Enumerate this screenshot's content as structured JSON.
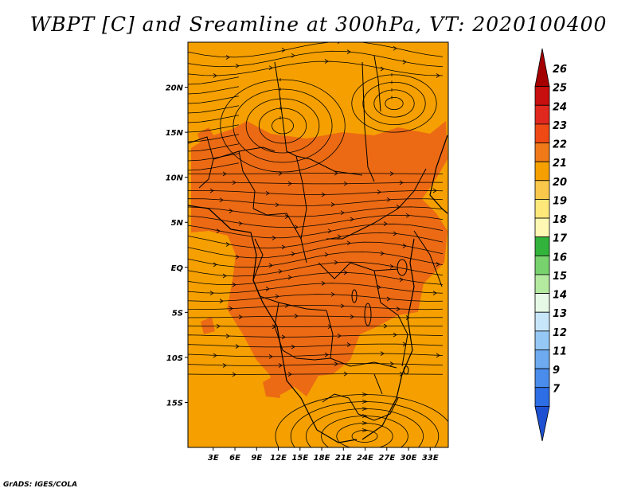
{
  "title": "WBPT [C] and Sreamline at 300hPa, VT: 2020100400",
  "credit": "GrADS: IGES/COLA",
  "map": {
    "lon_range": [
      -0.5,
      35.5
    ],
    "lat_range": [
      -20,
      25
    ],
    "lon_ticks": [
      {
        "value": 3,
        "label": "3E"
      },
      {
        "value": 6,
        "label": "6E"
      },
      {
        "value": 9,
        "label": "9E"
      },
      {
        "value": 12,
        "label": "12E"
      },
      {
        "value": 15,
        "label": "15E"
      },
      {
        "value": 18,
        "label": "18E"
      },
      {
        "value": 21,
        "label": "21E"
      },
      {
        "value": 24,
        "label": "24E"
      },
      {
        "value": 27,
        "label": "27E"
      },
      {
        "value": 30,
        "label": "30E"
      },
      {
        "value": 33,
        "label": "33E"
      }
    ],
    "lat_ticks": [
      {
        "value": 20,
        "label": "20N"
      },
      {
        "value": 15,
        "label": "15N"
      },
      {
        "value": 10,
        "label": "10N"
      },
      {
        "value": 5,
        "label": "5N"
      },
      {
        "value": 0,
        "label": "EQ"
      },
      {
        "value": -5,
        "label": "5S"
      },
      {
        "value": -10,
        "label": "10S"
      },
      {
        "value": -15,
        "label": "15S"
      }
    ],
    "background_color": "#f5a000",
    "warm_region_color": "#ec6a14"
  },
  "colorbar": {
    "levels": [
      "26",
      "25",
      "24",
      "23",
      "22",
      "21",
      "20",
      "19",
      "18",
      "17",
      "16",
      "15",
      "14",
      "13",
      "12",
      "11",
      "9",
      "7"
    ],
    "colors": [
      "#a50000",
      "#c80f0f",
      "#e0281e",
      "#ef4a14",
      "#f07a18",
      "#f5a000",
      "#fac84a",
      "#fee87a",
      "#fff7b4",
      "#32b43c",
      "#78d26e",
      "#b4eaa0",
      "#e6f8e6",
      "#c8e6fa",
      "#96c8f5",
      "#6eaaf0",
      "#4a8ceb",
      "#2d6ee6",
      "#1e50d2"
    ]
  }
}
